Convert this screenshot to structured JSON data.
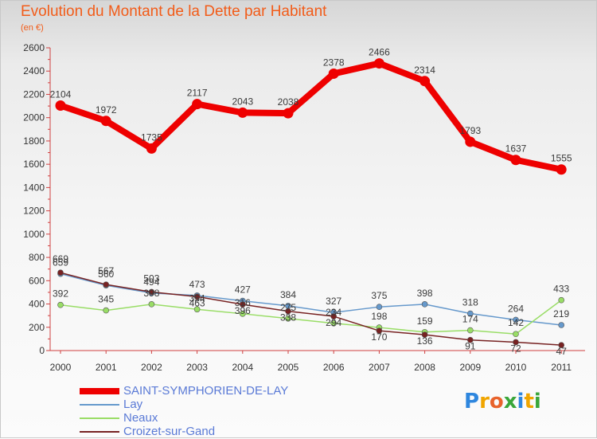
{
  "header": {
    "title": "Evolution du Montant de la Dette par Habitant",
    "subtitle": "(en €)"
  },
  "logo": {
    "text": "Proxiti",
    "letters": [
      {
        "ch": "P",
        "color": "#2e86de"
      },
      {
        "ch": "r",
        "color": "#f0a500"
      },
      {
        "ch": "o",
        "color": "#e8632c"
      },
      {
        "ch": "x",
        "color": "#3aa63a"
      },
      {
        "ch": "i",
        "color": "#2e86de"
      },
      {
        "ch": "t",
        "color": "#f0a500"
      },
      {
        "ch": "i",
        "color": "#3aa63a"
      }
    ]
  },
  "chart_data": {
    "type": "line",
    "title": "Evolution du Montant de la Dette par Habitant",
    "subtitle": "(en €)",
    "xlabel": "",
    "ylabel": "",
    "x": [
      "2000",
      "2001",
      "2002",
      "2003",
      "2004",
      "2005",
      "2006",
      "2007",
      "2008",
      "2009",
      "2010",
      "2011"
    ],
    "ylim": [
      0,
      2600
    ],
    "yticks": [
      0,
      200,
      400,
      600,
      800,
      1000,
      1200,
      1400,
      1600,
      1800,
      2000,
      2200,
      2400,
      2600
    ],
    "grid": false,
    "legend_position": "bottom-left",
    "series": [
      {
        "name": "SAINT-SYMPHORIEN-DE-LAY",
        "color": "#ee0000",
        "values": [
          2104,
          1972,
          1735,
          2117,
          2043,
          2038,
          2378,
          2466,
          2314,
          1793,
          1637,
          1555
        ]
      },
      {
        "name": "Lay",
        "color": "#6699cc",
        "values": [
          659,
          560,
          494,
          473,
          427,
          384,
          327,
          375,
          398,
          318,
          264,
          219
        ]
      },
      {
        "name": "Neaux",
        "color": "#99dd66",
        "values": [
          392,
          345,
          398,
          354,
          316,
          275,
          234,
          198,
          159,
          174,
          142,
          433
        ]
      },
      {
        "name": "Croizet-sur-Gand",
        "color": "#772222",
        "values": [
          669,
          567,
          503,
          463,
          396,
          338,
          294,
          170,
          136,
          91,
          72,
          47
        ]
      }
    ]
  }
}
